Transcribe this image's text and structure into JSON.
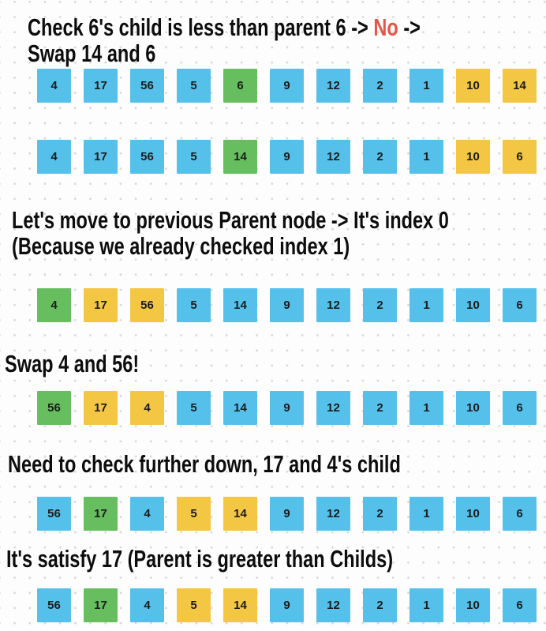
{
  "colors": {
    "blue": "#55C1EB",
    "green": "#66BE5E",
    "yellow": "#F3C643",
    "red": "#E2574C",
    "heading_text": "#0D0D0D",
    "cell_text": "#1B1B1B",
    "dot_grid": "#D8D8D8",
    "background": "#FDFDFD"
  },
  "headings": {
    "h1": {
      "lines": [
        [
          {
            "text": "Check 6's child is less than parent 6 -> "
          },
          {
            "text": "No",
            "color": "red"
          },
          {
            "text": " ->"
          }
        ],
        [
          {
            "text": "Swap 14 and 6"
          }
        ]
      ]
    },
    "h2": {
      "lines": [
        [
          {
            "text": "Let's move to previous Parent node -> It's index 0"
          }
        ],
        [
          {
            "text": "(Because we already checked index 1)"
          }
        ]
      ]
    },
    "h3": {
      "lines": [
        [
          {
            "text": "Swap 4 and 56!"
          }
        ]
      ]
    },
    "h4": {
      "lines": [
        [
          {
            "text": "Need to check further down, 17 and 4's child"
          }
        ]
      ]
    },
    "h5": {
      "lines": [
        [
          {
            "text": "It's satisfy 17 (Parent is greater than Childs)"
          }
        ]
      ]
    }
  },
  "rows": {
    "a": {
      "cells": [
        {
          "value": "4",
          "color": "blue"
        },
        {
          "value": "17",
          "color": "blue"
        },
        {
          "value": "56",
          "color": "blue"
        },
        {
          "value": "5",
          "color": "blue"
        },
        {
          "value": "6",
          "color": "green"
        },
        {
          "value": "9",
          "color": "blue"
        },
        {
          "value": "12",
          "color": "blue"
        },
        {
          "value": "2",
          "color": "blue"
        },
        {
          "value": "1",
          "color": "blue"
        },
        {
          "value": "10",
          "color": "yellow"
        },
        {
          "value": "14",
          "color": "yellow"
        }
      ]
    },
    "b": {
      "cells": [
        {
          "value": "4",
          "color": "blue"
        },
        {
          "value": "17",
          "color": "blue"
        },
        {
          "value": "56",
          "color": "blue"
        },
        {
          "value": "5",
          "color": "blue"
        },
        {
          "value": "14",
          "color": "green"
        },
        {
          "value": "9",
          "color": "blue"
        },
        {
          "value": "12",
          "color": "blue"
        },
        {
          "value": "2",
          "color": "blue"
        },
        {
          "value": "1",
          "color": "blue"
        },
        {
          "value": "10",
          "color": "yellow"
        },
        {
          "value": "6",
          "color": "yellow"
        }
      ]
    },
    "c": {
      "cells": [
        {
          "value": "4",
          "color": "green"
        },
        {
          "value": "17",
          "color": "yellow"
        },
        {
          "value": "56",
          "color": "yellow"
        },
        {
          "value": "5",
          "color": "blue"
        },
        {
          "value": "14",
          "color": "blue"
        },
        {
          "value": "9",
          "color": "blue"
        },
        {
          "value": "12",
          "color": "blue"
        },
        {
          "value": "2",
          "color": "blue"
        },
        {
          "value": "1",
          "color": "blue"
        },
        {
          "value": "10",
          "color": "blue"
        },
        {
          "value": "6",
          "color": "blue"
        }
      ]
    },
    "d": {
      "cells": [
        {
          "value": "56",
          "color": "green"
        },
        {
          "value": "17",
          "color": "yellow"
        },
        {
          "value": "4",
          "color": "yellow"
        },
        {
          "value": "5",
          "color": "blue"
        },
        {
          "value": "14",
          "color": "blue"
        },
        {
          "value": "9",
          "color": "blue"
        },
        {
          "value": "12",
          "color": "blue"
        },
        {
          "value": "2",
          "color": "blue"
        },
        {
          "value": "1",
          "color": "blue"
        },
        {
          "value": "10",
          "color": "blue"
        },
        {
          "value": "6",
          "color": "blue"
        }
      ]
    },
    "e": {
      "cells": [
        {
          "value": "56",
          "color": "blue"
        },
        {
          "value": "17",
          "color": "green"
        },
        {
          "value": "4",
          "color": "blue"
        },
        {
          "value": "5",
          "color": "yellow"
        },
        {
          "value": "14",
          "color": "yellow"
        },
        {
          "value": "9",
          "color": "blue"
        },
        {
          "value": "12",
          "color": "blue"
        },
        {
          "value": "2",
          "color": "blue"
        },
        {
          "value": "1",
          "color": "blue"
        },
        {
          "value": "10",
          "color": "blue"
        },
        {
          "value": "6",
          "color": "blue"
        }
      ]
    },
    "f": {
      "cells": [
        {
          "value": "56",
          "color": "blue"
        },
        {
          "value": "17",
          "color": "green"
        },
        {
          "value": "4",
          "color": "blue"
        },
        {
          "value": "5",
          "color": "yellow"
        },
        {
          "value": "14",
          "color": "yellow"
        },
        {
          "value": "9",
          "color": "blue"
        },
        {
          "value": "12",
          "color": "blue"
        },
        {
          "value": "2",
          "color": "blue"
        },
        {
          "value": "1",
          "color": "blue"
        },
        {
          "value": "10",
          "color": "blue"
        },
        {
          "value": "6",
          "color": "blue"
        }
      ]
    }
  }
}
